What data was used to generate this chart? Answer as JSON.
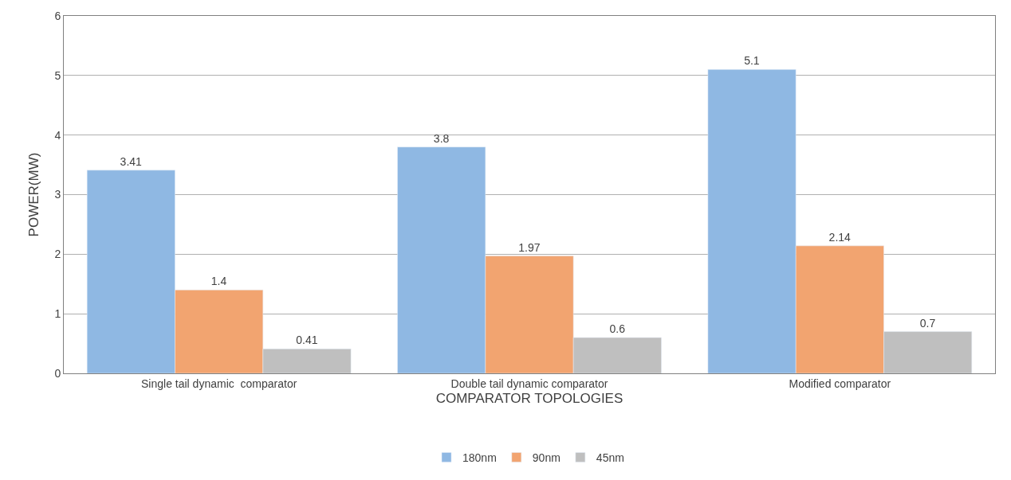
{
  "chart_data": {
    "type": "bar",
    "xlabel": "COMPARATOR TOPOLOGIES",
    "ylabel": "POWER(MW)",
    "categories": [
      "Single tail dynamic  comparator",
      "Double tail dynamic comparator",
      "Modified comparator"
    ],
    "series": [
      {
        "name": "180nm",
        "color": "#8fb8e3",
        "values": [
          3.41,
          3.8,
          5.1
        ]
      },
      {
        "name": "90nm",
        "color": "#f2a470",
        "values": [
          1.4,
          1.97,
          2.14
        ]
      },
      {
        "name": "45nm",
        "color": "#bfbfbf",
        "values": [
          0.41,
          0.6,
          0.7
        ]
      }
    ],
    "ylim": [
      0,
      6
    ],
    "yticks": [
      0,
      1,
      2,
      3,
      4,
      5,
      6
    ],
    "grid": "y",
    "legend": "bottom",
    "data_labels": true
  }
}
